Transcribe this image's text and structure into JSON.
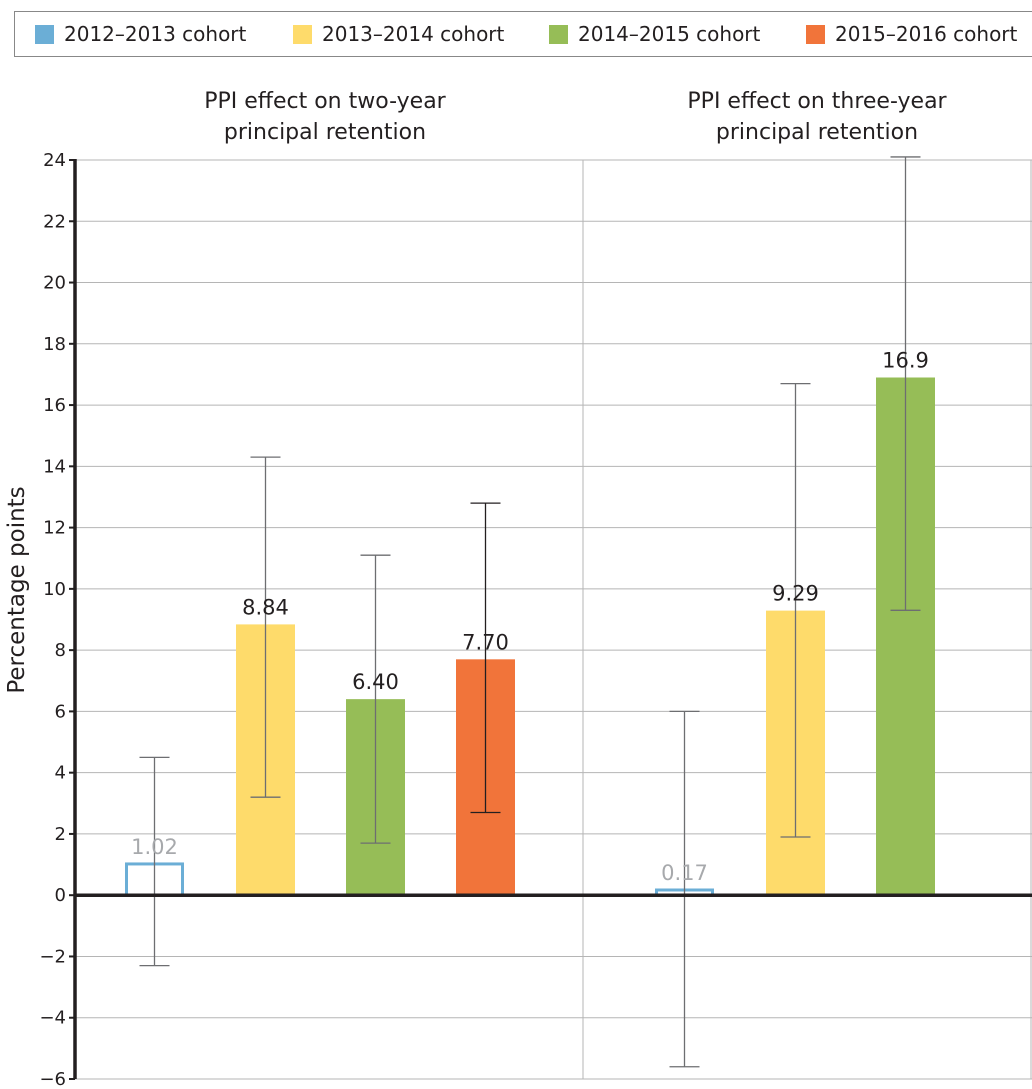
{
  "chart_data": {
    "type": "bar",
    "ylabel": "Percentage points",
    "ylim": [
      -6,
      24
    ],
    "yticks": [
      "24",
      "22",
      "20",
      "18",
      "16",
      "14",
      "12",
      "10",
      "8",
      "6",
      "4",
      "2",
      "0",
      "−2",
      "−4",
      "−6"
    ],
    "ytick_values": [
      24,
      22,
      20,
      18,
      16,
      14,
      12,
      10,
      8,
      6,
      4,
      2,
      0,
      -2,
      -4,
      -6
    ],
    "grid": true,
    "legend_position": "top",
    "legend": [
      {
        "label": "2012–2013 cohort",
        "color": "#6baed6"
      },
      {
        "label": "2013–2014 cohort",
        "color": "#fedb6b"
      },
      {
        "label": "2014–2015 cohort",
        "color": "#96bd57"
      },
      {
        "label": "2015–2016 cohort",
        "color": "#f1743a"
      }
    ],
    "panels": [
      {
        "title_lines": [
          "PPI effect on two-year",
          "principal retention"
        ],
        "bars": [
          {
            "cohort": "2012–2013 cohort",
            "value": 1.02,
            "label": "1.02",
            "ci": [
              -2.3,
              4.5
            ],
            "hollow": true
          },
          {
            "cohort": "2013–2014 cohort",
            "value": 8.84,
            "label": "8.84",
            "ci": [
              3.2,
              14.3
            ],
            "hollow": false
          },
          {
            "cohort": "2014–2015 cohort",
            "value": 6.4,
            "label": "6.40",
            "ci": [
              1.7,
              11.1
            ],
            "hollow": false
          },
          {
            "cohort": "2015–2016 cohort",
            "value": 7.7,
            "label": "7.70",
            "ci": [
              2.7,
              12.8
            ],
            "hollow": false
          }
        ]
      },
      {
        "title_lines": [
          "PPI effect on three-year",
          "principal retention"
        ],
        "bars": [
          {
            "cohort": "2012–2013 cohort",
            "value": 0.17,
            "label": "0.17",
            "ci": [
              -5.6,
              6.0
            ],
            "hollow": true
          },
          {
            "cohort": "2013–2014 cohort",
            "value": 9.29,
            "label": "9.29",
            "ci": [
              1.9,
              16.7
            ],
            "hollow": false
          },
          {
            "cohort": "2014–2015 cohort",
            "value": 16.9,
            "label": "16.9",
            "ci": [
              9.3,
              24.1
            ],
            "hollow": false
          }
        ]
      }
    ]
  }
}
